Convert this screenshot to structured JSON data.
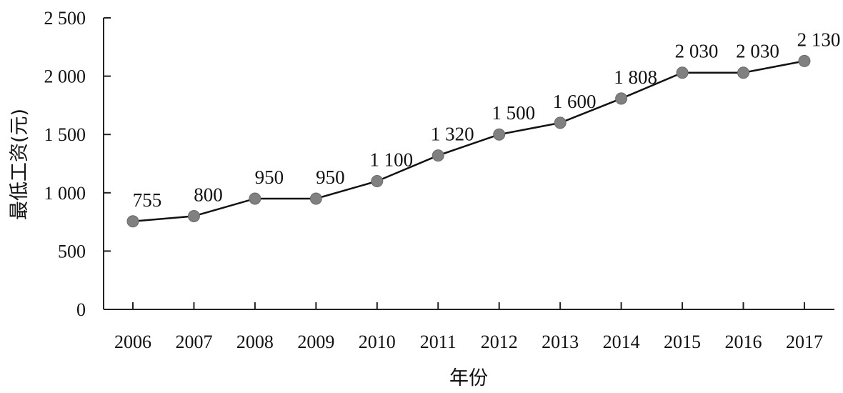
{
  "chart_data": {
    "type": "line",
    "title": "",
    "xlabel": "年份",
    "ylabel": "最低工资(元)",
    "x": [
      "2006",
      "2007",
      "2008",
      "2009",
      "2010",
      "2011",
      "2012",
      "2013",
      "2014",
      "2015",
      "2016",
      "2017"
    ],
    "series": [
      {
        "values": [
          755,
          800,
          950,
          950,
          1100,
          1320,
          1500,
          1600,
          1808,
          2030,
          2030,
          2130
        ],
        "data_labels": [
          "755",
          "800",
          "950",
          "950",
          "1 100",
          "1 320",
          "1 500",
          "1 600",
          "1 808",
          "2 030",
          "2 030",
          "2 130"
        ],
        "color": "#808080"
      }
    ],
    "ylim": [
      0,
      2500
    ],
    "yticks": [
      0,
      500,
      1000,
      1500,
      2000,
      2500
    ],
    "ytick_labels": [
      "0",
      "500",
      "1 000",
      "1 500",
      "2 000",
      "2 500"
    ],
    "grid": false,
    "legend": "none"
  }
}
